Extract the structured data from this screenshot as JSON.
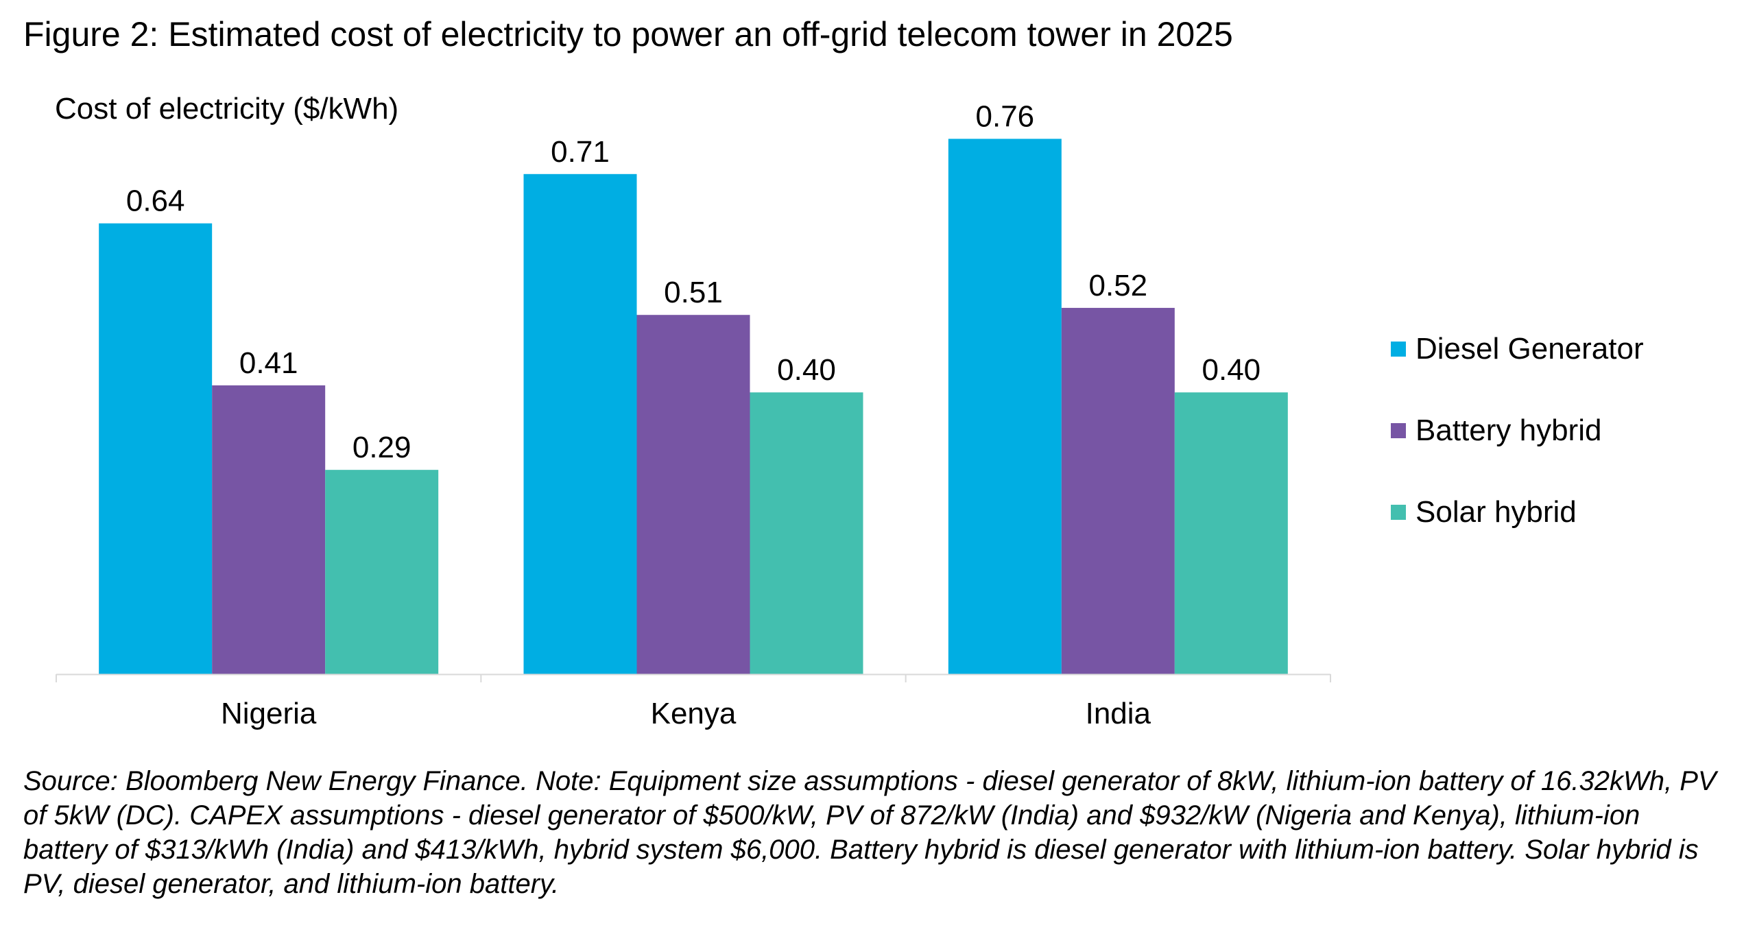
{
  "figure": {
    "title": "Figure 2: Estimated cost of electricity to power an off-grid telecom tower in 2025",
    "source_note": "Source: Bloomberg New Energy Finance. Note: Equipment size assumptions - diesel generator of 8kW, lithium-ion battery of 16.32kWh, PV of 5kW (DC). CAPEX assumptions - diesel generator of $500/kW, PV of 872/kW (India) and $932/kW (Nigeria and Kenya), lithium-ion battery of $313/kWh (India) and $413/kWh, hybrid system $6,000. Battery hybrid is diesel generator with lithium-ion battery. Solar hybrid is PV, diesel generator, and lithium-ion battery."
  },
  "chart_data": {
    "type": "bar",
    "title": "Figure 2: Estimated cost of electricity to power an off-grid telecom tower in 2025",
    "ylabel": "Cost of electricity ($/kWh)",
    "xlabel": "",
    "categories": [
      "Nigeria",
      "Kenya",
      "India"
    ],
    "series": [
      {
        "name": "Diesel Generator",
        "color": "#00AEE3",
        "values": [
          0.64,
          0.71,
          0.76
        ],
        "labels": [
          "0.64",
          "0.71",
          "0.76"
        ]
      },
      {
        "name": "Battery hybrid",
        "color": "#7755A4",
        "values": [
          0.41,
          0.51,
          0.52
        ],
        "labels": [
          "0.41",
          "0.51",
          "0.52"
        ]
      },
      {
        "name": "Solar hybrid",
        "color": "#43BFAF",
        "values": [
          0.29,
          0.4,
          0.4
        ],
        "labels": [
          "0.29",
          "0.40",
          "0.40"
        ]
      }
    ],
    "ylim": [
      0,
      0.85
    ],
    "grid": false,
    "y_axis_visible": false,
    "legend_position": "right"
  }
}
